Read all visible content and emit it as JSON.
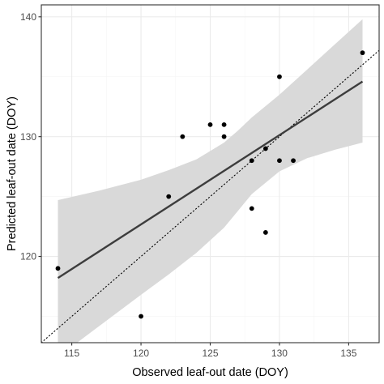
{
  "chart_data": {
    "type": "scatter",
    "xlabel": "Observed leaf-out date (DOY)",
    "ylabel": "Predicted leaf-out date (DOY)",
    "xlim": [
      112.8,
      137.2
    ],
    "ylim": [
      112.8,
      141.0
    ],
    "x_ticks": [
      115,
      120,
      125,
      130,
      135
    ],
    "y_ticks": [
      120,
      130,
      140
    ],
    "x_minor_ticks": [
      117.5,
      122.5,
      127.5,
      132.5
    ],
    "y_minor_ticks": [
      115,
      125,
      135
    ],
    "grid": true,
    "legend": "none",
    "points": [
      {
        "x": 114,
        "y": 119
      },
      {
        "x": 120,
        "y": 115
      },
      {
        "x": 122,
        "y": 125
      },
      {
        "x": 123,
        "y": 130
      },
      {
        "x": 125,
        "y": 131
      },
      {
        "x": 126,
        "y": 131
      },
      {
        "x": 126,
        "y": 130
      },
      {
        "x": 128,
        "y": 128
      },
      {
        "x": 128,
        "y": 124
      },
      {
        "x": 129,
        "y": 129
      },
      {
        "x": 129,
        "y": 122
      },
      {
        "x": 130,
        "y": 135
      },
      {
        "x": 130,
        "y": 128
      },
      {
        "x": 131,
        "y": 128
      },
      {
        "x": 136,
        "y": 137
      }
    ],
    "regression_line": {
      "x": [
        114,
        136
      ],
      "y": [
        118.2,
        134.6
      ]
    },
    "confidence_band": {
      "x": [
        114,
        117,
        120,
        122,
        124,
        126,
        127,
        128,
        130,
        132,
        134,
        136
      ],
      "upper": [
        124.7,
        125.5,
        126.4,
        127.2,
        128.1,
        129.5,
        130.5,
        131.6,
        133.5,
        135.6,
        137.7,
        139.8
      ],
      "lower": [
        111.6,
        114.2,
        116.8,
        118.5,
        120.3,
        122.4,
        123.8,
        125.2,
        127.1,
        128.2,
        128.9,
        129.5
      ]
    },
    "reference_line": {
      "style": "dotted",
      "slope": 1,
      "intercept": 0
    },
    "colors": {
      "points": "#000000",
      "regression_line": "#3d3d3d",
      "band_fill": "#d9d9d9",
      "grid_major": "#ebebeb",
      "grid_minor": "#f5f5f5",
      "panel_border": "#333333"
    }
  }
}
